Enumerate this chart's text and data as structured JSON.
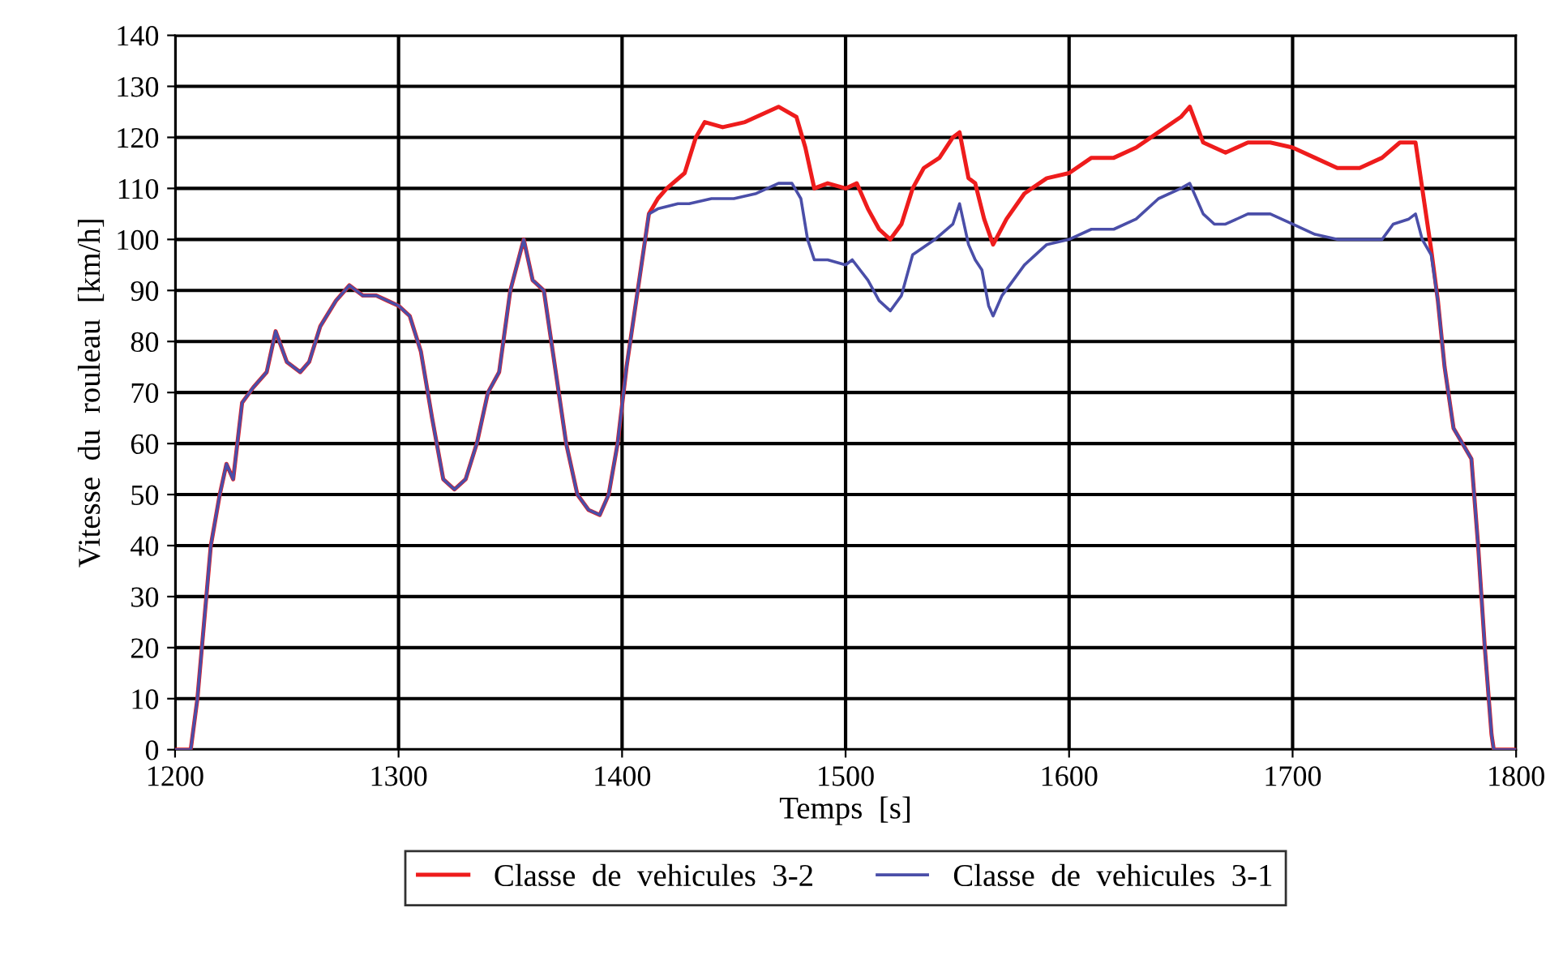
{
  "chart_data": {
    "type": "line",
    "xlabel": "Temps  [s]",
    "ylabel": "Vitesse  du  rouleau  [km/h]",
    "xlim": [
      1200,
      1800
    ],
    "xticks": [
      1200,
      1300,
      1400,
      1500,
      1600,
      1700,
      1800
    ],
    "ylim": [
      0,
      140
    ],
    "yticks": [
      0,
      10,
      20,
      30,
      40,
      50,
      60,
      70,
      80,
      90,
      100,
      110,
      120,
      130,
      140
    ],
    "grid": true,
    "legend": "bottom",
    "line_style": "solid",
    "marker": "none",
    "series": [
      {
        "name": "Classe  de  vehicules  3-2",
        "color": "#ee1c1c",
        "x": [
          1200,
          1207,
          1210,
          1213,
          1216,
          1220,
          1223,
          1226,
          1230,
          1235,
          1241,
          1245,
          1250,
          1256,
          1260,
          1265,
          1272,
          1278,
          1284,
          1290,
          1295,
          1300,
          1305,
          1310,
          1315,
          1320,
          1325,
          1330,
          1335,
          1340,
          1345,
          1350,
          1356,
          1360,
          1365,
          1370,
          1375,
          1380,
          1385,
          1390,
          1394,
          1398,
          1402,
          1407,
          1412,
          1416,
          1420,
          1428,
          1433,
          1437,
          1445,
          1455,
          1465,
          1470,
          1478,
          1482,
          1486,
          1492,
          1500,
          1505,
          1510,
          1515,
          1520,
          1525,
          1530,
          1535,
          1542,
          1548,
          1551,
          1555,
          1558,
          1562,
          1566,
          1572,
          1580,
          1590,
          1600,
          1610,
          1620,
          1630,
          1640,
          1650,
          1654,
          1660,
          1665,
          1670,
          1680,
          1690,
          1700,
          1710,
          1720,
          1730,
          1740,
          1748,
          1755,
          1758,
          1762,
          1765,
          1768,
          1772,
          1776,
          1780,
          1783,
          1786,
          1789,
          1790,
          1800
        ],
        "values": [
          0,
          0,
          10,
          25,
          40,
          50,
          56,
          53,
          68,
          71,
          74,
          82,
          76,
          74,
          76,
          83,
          88,
          91,
          89,
          89,
          88,
          87,
          85,
          78,
          65,
          53,
          51,
          53,
          60,
          70,
          74,
          90,
          100,
          92,
          90,
          75,
          60,
          50,
          47,
          46,
          50,
          60,
          75,
          90,
          105,
          108,
          110,
          113,
          120,
          123,
          122,
          123,
          125,
          126,
          124,
          118,
          110,
          111,
          110,
          111,
          106,
          102,
          100,
          103,
          110,
          114,
          116,
          120,
          121,
          112,
          111,
          104,
          99,
          104,
          109,
          112,
          113,
          116,
          116,
          118,
          121,
          124,
          126,
          119,
          118,
          117,
          119,
          119,
          118,
          116,
          114,
          114,
          116,
          119,
          119,
          110,
          98,
          88,
          75,
          63,
          60,
          57,
          40,
          20,
          3,
          0,
          0
        ]
      },
      {
        "name": "Classe  de  vehicules  3-1",
        "color": "#4a4ea8",
        "x": [
          1200,
          1207,
          1210,
          1213,
          1216,
          1220,
          1223,
          1226,
          1230,
          1235,
          1241,
          1245,
          1250,
          1256,
          1260,
          1265,
          1272,
          1278,
          1284,
          1290,
          1295,
          1300,
          1305,
          1310,
          1315,
          1320,
          1325,
          1330,
          1335,
          1340,
          1345,
          1350,
          1356,
          1360,
          1365,
          1370,
          1375,
          1380,
          1385,
          1390,
          1394,
          1398,
          1402,
          1407,
          1412,
          1416,
          1425,
          1430,
          1440,
          1450,
          1460,
          1470,
          1476,
          1480,
          1483,
          1486,
          1492,
          1500,
          1503,
          1510,
          1515,
          1520,
          1525,
          1530,
          1540,
          1548,
          1551,
          1555,
          1558,
          1561,
          1564,
          1566,
          1570,
          1580,
          1590,
          1600,
          1610,
          1620,
          1630,
          1640,
          1650,
          1654,
          1660,
          1665,
          1670,
          1680,
          1690,
          1700,
          1710,
          1720,
          1730,
          1740,
          1745,
          1752,
          1755,
          1758,
          1762,
          1765,
          1768,
          1772,
          1776,
          1780,
          1783,
          1786,
          1789,
          1790,
          1800
        ],
        "values": [
          0,
          0,
          10,
          25,
          40,
          50,
          56,
          53,
          68,
          71,
          74,
          82,
          76,
          74,
          76,
          83,
          88,
          91,
          89,
          89,
          88,
          87,
          85,
          78,
          65,
          53,
          51,
          53,
          60,
          70,
          74,
          90,
          100,
          92,
          90,
          75,
          60,
          50,
          47,
          46,
          50,
          60,
          75,
          90,
          105,
          106,
          107,
          107,
          108,
          108,
          109,
          111,
          111,
          108,
          100,
          96,
          96,
          95,
          96,
          92,
          88,
          86,
          89,
          97,
          100,
          103,
          107,
          99,
          96,
          94,
          87,
          85,
          89,
          95,
          99,
          100,
          102,
          102,
          104,
          108,
          110,
          111,
          105,
          103,
          103,
          105,
          105,
          103,
          101,
          100,
          100,
          100,
          103,
          104,
          105,
          100,
          97,
          88,
          75,
          63,
          60,
          57,
          40,
          20,
          3,
          0,
          0
        ]
      }
    ]
  }
}
